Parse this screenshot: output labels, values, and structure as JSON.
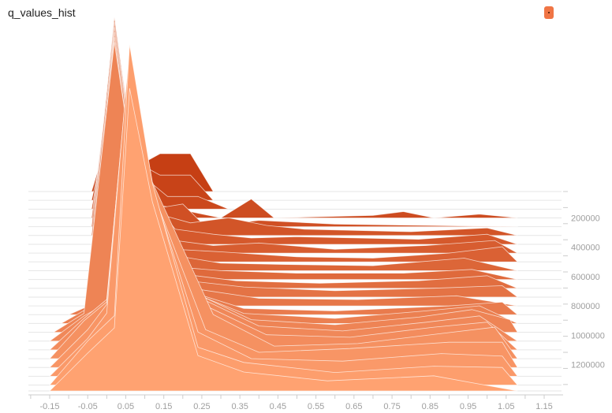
{
  "header": {
    "title": "q_values_hist",
    "run_color_button": "run-color-toggle"
  },
  "colors": {
    "oldest": "#c63f14",
    "newest": "#ffa271",
    "outline": "#ffffff",
    "axis": "#cccccc",
    "tick_text": "#9e9e9e",
    "legend": "#f07545"
  },
  "chart_data": {
    "type": "area",
    "title": "q_values_hist",
    "xlabel": "",
    "ylabel": "",
    "xlim": [
      -0.15,
      1.15
    ],
    "x_ticks": [
      "-0.15",
      "-0.05",
      "0.05",
      "0.15",
      "0.25",
      "0.35",
      "0.45",
      "0.55",
      "0.65",
      "0.75",
      "0.85",
      "0.95",
      "1.05",
      "1.15"
    ],
    "step_ticks": [
      "200000",
      "400000",
      "600000",
      "800000",
      "1000000",
      "1200000"
    ],
    "step_range": [
      20000,
      1380000
    ],
    "series": [
      {
        "step": 20000,
        "points": [
          [
            -0.04,
            0
          ],
          [
            0.02,
            0.6
          ],
          [
            0.08,
            0.2
          ],
          [
            0.14,
            0.3
          ],
          [
            0.22,
            0.3
          ],
          [
            0.28,
            0
          ]
        ]
      },
      {
        "step": 80000,
        "points": [
          [
            -0.04,
            0
          ],
          [
            0.02,
            0.8
          ],
          [
            0.08,
            0.3
          ],
          [
            0.14,
            0.2
          ],
          [
            0.22,
            0.2
          ],
          [
            0.28,
            0
          ]
        ]
      },
      {
        "step": 140000,
        "points": [
          [
            -0.04,
            0
          ],
          [
            0.02,
            1.0
          ],
          [
            0.08,
            0.3
          ],
          [
            0.16,
            0.1
          ],
          [
            0.24,
            0.1
          ],
          [
            0.32,
            0
          ]
        ]
      },
      {
        "step": 200000,
        "points": [
          [
            -0.04,
            0
          ],
          [
            0.02,
            1.3
          ],
          [
            0.08,
            0.4
          ],
          [
            0.14,
            0.1
          ],
          [
            0.3,
            0
          ],
          [
            0.38,
            0.15
          ],
          [
            0.44,
            0
          ],
          [
            0.7,
            0.02
          ],
          [
            0.78,
            0.05
          ],
          [
            0.86,
            0
          ],
          [
            0.98,
            0.03
          ],
          [
            1.08,
            0
          ]
        ]
      },
      {
        "step": 260000,
        "points": [
          [
            -0.04,
            0
          ],
          [
            0.02,
            1.6
          ],
          [
            0.08,
            0.5
          ],
          [
            0.14,
            0.15
          ],
          [
            0.2,
            0.18
          ],
          [
            0.26,
            0
          ],
          [
            0.4,
            0.05
          ],
          [
            0.6,
            0.02
          ],
          [
            1.08,
            0
          ]
        ]
      },
      {
        "step": 320000,
        "points": [
          [
            -0.04,
            0
          ],
          [
            0.02,
            1.7
          ],
          [
            0.08,
            0.5
          ],
          [
            0.16,
            0.15
          ],
          [
            0.22,
            0.1
          ],
          [
            0.32,
            0.14
          ],
          [
            0.42,
            0.08
          ],
          [
            0.52,
            0.05
          ],
          [
            0.8,
            0.03
          ],
          [
            1.0,
            0.06
          ],
          [
            1.08,
            0
          ]
        ]
      },
      {
        "step": 380000,
        "points": [
          [
            -0.04,
            0
          ],
          [
            0.02,
            1.8
          ],
          [
            0.08,
            0.5
          ],
          [
            0.18,
            0.12
          ],
          [
            0.28,
            0.08
          ],
          [
            0.38,
            0.05
          ],
          [
            0.5,
            0.06
          ],
          [
            0.82,
            0.04
          ],
          [
            1.0,
            0.08
          ],
          [
            1.08,
            0
          ]
        ]
      },
      {
        "step": 440000,
        "points": [
          [
            -0.04,
            0
          ],
          [
            0.02,
            1.8
          ],
          [
            0.08,
            0.6
          ],
          [
            0.18,
            0.1
          ],
          [
            0.28,
            0.06
          ],
          [
            0.4,
            0.08
          ],
          [
            0.6,
            0.03
          ],
          [
            0.84,
            0.06
          ],
          [
            1.02,
            0.1
          ],
          [
            1.08,
            0
          ]
        ]
      },
      {
        "step": 500000,
        "points": [
          [
            -0.04,
            0
          ],
          [
            0.02,
            1.9
          ],
          [
            0.08,
            0.6
          ],
          [
            0.18,
            0.1
          ],
          [
            0.3,
            0.08
          ],
          [
            0.5,
            0.04
          ],
          [
            0.7,
            0.03
          ],
          [
            0.9,
            0.07
          ],
          [
            1.04,
            0.12
          ],
          [
            1.08,
            0
          ]
        ]
      },
      {
        "step": 560000,
        "points": [
          [
            -0.04,
            0
          ],
          [
            0.02,
            1.9
          ],
          [
            0.08,
            0.6
          ],
          [
            0.18,
            0.12
          ],
          [
            0.3,
            0.06
          ],
          [
            0.46,
            0.05
          ],
          [
            0.7,
            0.04
          ],
          [
            0.94,
            0.1
          ],
          [
            1.08,
            0
          ]
        ]
      },
      {
        "step": 620000,
        "points": [
          [
            -0.04,
            0
          ],
          [
            0.02,
            2.0
          ],
          [
            0.08,
            0.7
          ],
          [
            0.18,
            0.1
          ],
          [
            0.3,
            0.07
          ],
          [
            0.5,
            0.05
          ],
          [
            0.78,
            0.05
          ],
          [
            0.96,
            0.08
          ],
          [
            1.08,
            0
          ]
        ]
      },
      {
        "step": 680000,
        "points": [
          [
            -0.04,
            0
          ],
          [
            0.02,
            2.0
          ],
          [
            0.08,
            0.7
          ],
          [
            0.18,
            0.12
          ],
          [
            0.34,
            0.06
          ],
          [
            0.56,
            0.04
          ],
          [
            0.82,
            0.06
          ],
          [
            1.0,
            0.1
          ],
          [
            1.08,
            0
          ]
        ]
      },
      {
        "step": 740000,
        "points": [
          [
            -0.04,
            0
          ],
          [
            0.02,
            2.1
          ],
          [
            0.08,
            0.75
          ],
          [
            0.18,
            0.14
          ],
          [
            0.36,
            0.08
          ],
          [
            0.6,
            0.05
          ],
          [
            0.86,
            0.07
          ],
          [
            1.04,
            0.09
          ],
          [
            1.08,
            0
          ]
        ]
      },
      {
        "step": 800000,
        "points": [
          [
            -0.04,
            0
          ],
          [
            0.02,
            2.1
          ],
          [
            0.08,
            0.8
          ],
          [
            0.2,
            0.15
          ],
          [
            0.4,
            0.06
          ],
          [
            0.66,
            0.05
          ],
          [
            0.92,
            0.08
          ],
          [
            1.08,
            0
          ]
        ]
      },
      {
        "step": 860000,
        "points": [
          [
            -0.1,
            0
          ],
          [
            -0.04,
            0.08
          ],
          [
            0.02,
            2.2
          ],
          [
            0.08,
            0.9
          ],
          [
            0.2,
            0.2
          ],
          [
            0.36,
            0.05
          ],
          [
            0.6,
            0.03
          ],
          [
            0.9,
            0.07
          ],
          [
            1.04,
            0.1
          ],
          [
            1.08,
            0
          ]
        ]
      },
      {
        "step": 920000,
        "points": [
          [
            -0.12,
            0
          ],
          [
            -0.05,
            0.12
          ],
          [
            0.02,
            2.2
          ],
          [
            0.08,
            1.0
          ],
          [
            0.22,
            0.25
          ],
          [
            0.36,
            0.08
          ],
          [
            0.6,
            0.04
          ],
          [
            0.84,
            0.1
          ],
          [
            0.98,
            0.14
          ],
          [
            1.08,
            0
          ]
        ]
      },
      {
        "step": 980000,
        "points": [
          [
            -0.14,
            0
          ],
          [
            -0.06,
            0.15
          ],
          [
            0.02,
            2.3
          ],
          [
            0.08,
            1.1
          ],
          [
            0.24,
            0.3
          ],
          [
            0.38,
            0.1
          ],
          [
            0.6,
            0.06
          ],
          [
            0.82,
            0.12
          ],
          [
            0.96,
            0.18
          ],
          [
            1.06,
            0.1
          ],
          [
            1.08,
            0
          ]
        ]
      },
      {
        "step": 1040000,
        "points": [
          [
            -0.15,
            0
          ],
          [
            -0.06,
            0.2
          ],
          [
            0.0,
            0.3
          ],
          [
            0.06,
            2.2
          ],
          [
            0.12,
            1.2
          ],
          [
            0.24,
            0.35
          ],
          [
            0.4,
            0.12
          ],
          [
            0.62,
            0.08
          ],
          [
            0.84,
            0.15
          ],
          [
            0.98,
            0.2
          ],
          [
            1.08,
            0
          ]
        ]
      },
      {
        "step": 1100000,
        "points": [
          [
            -0.15,
            0
          ],
          [
            -0.06,
            0.25
          ],
          [
            0.0,
            0.4
          ],
          [
            0.06,
            2.3
          ],
          [
            0.12,
            1.3
          ],
          [
            0.26,
            0.35
          ],
          [
            0.42,
            0.12
          ],
          [
            0.64,
            0.1
          ],
          [
            0.86,
            0.18
          ],
          [
            1.0,
            0.22
          ],
          [
            1.08,
            0
          ]
        ]
      },
      {
        "step": 1160000,
        "points": [
          [
            -0.15,
            0
          ],
          [
            -0.06,
            0.3
          ],
          [
            0.0,
            0.45
          ],
          [
            0.06,
            2.4
          ],
          [
            0.12,
            1.4
          ],
          [
            0.28,
            0.35
          ],
          [
            0.44,
            0.1
          ],
          [
            0.66,
            0.12
          ],
          [
            0.88,
            0.2
          ],
          [
            1.02,
            0.25
          ],
          [
            1.08,
            0
          ]
        ]
      },
      {
        "step": 1220000,
        "points": [
          [
            -0.15,
            0
          ],
          [
            -0.05,
            0.3
          ],
          [
            0.0,
            0.5
          ],
          [
            0.06,
            2.5
          ],
          [
            0.12,
            1.4
          ],
          [
            0.26,
            0.3
          ],
          [
            0.4,
            0.12
          ],
          [
            0.64,
            0.15
          ],
          [
            0.9,
            0.2
          ],
          [
            1.04,
            0.2
          ],
          [
            1.08,
            0
          ]
        ]
      },
      {
        "step": 1280000,
        "points": [
          [
            -0.15,
            0
          ],
          [
            -0.05,
            0.3
          ],
          [
            0.0,
            0.5
          ],
          [
            0.06,
            2.6
          ],
          [
            0.12,
            1.5
          ],
          [
            0.24,
            0.35
          ],
          [
            0.38,
            0.14
          ],
          [
            0.62,
            0.12
          ],
          [
            0.88,
            0.18
          ],
          [
            1.04,
            0.16
          ],
          [
            1.08,
            0
          ]
        ]
      },
      {
        "step": 1340000,
        "points": [
          [
            -0.15,
            0
          ],
          [
            -0.05,
            0.35
          ],
          [
            0.02,
            0.55
          ],
          [
            0.06,
            2.7
          ],
          [
            0.12,
            1.6
          ],
          [
            0.24,
            0.3
          ],
          [
            0.36,
            0.18
          ],
          [
            0.6,
            0.1
          ],
          [
            0.86,
            0.15
          ],
          [
            1.04,
            0.14
          ],
          [
            1.08,
            0
          ]
        ]
      },
      {
        "step": 1380000,
        "points": [
          [
            -0.15,
            0
          ],
          [
            -0.05,
            0.3
          ],
          [
            0.02,
            0.5
          ],
          [
            0.06,
            2.4
          ],
          [
            0.12,
            1.5
          ],
          [
            0.24,
            0.28
          ],
          [
            0.36,
            0.15
          ],
          [
            0.58,
            0.08
          ],
          [
            0.86,
            0.12
          ],
          [
            1.08,
            0
          ]
        ]
      }
    ]
  }
}
